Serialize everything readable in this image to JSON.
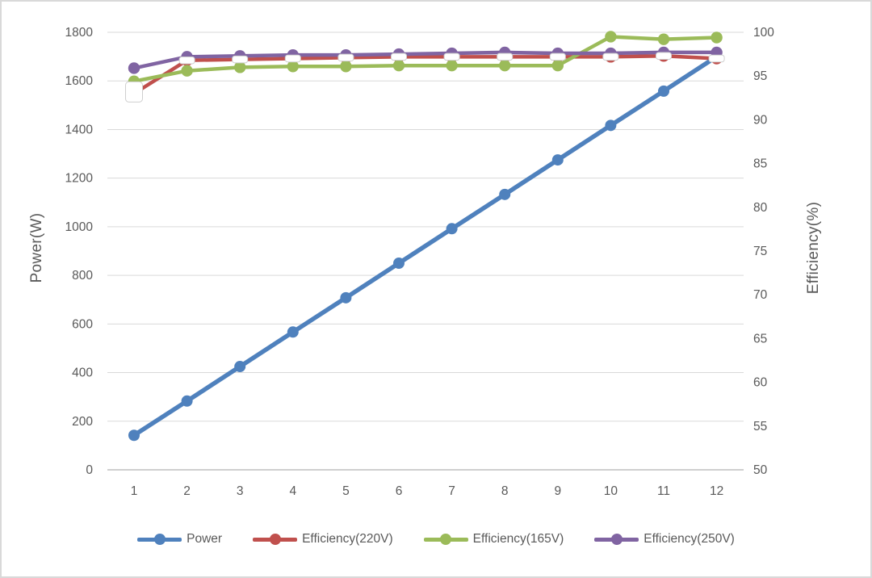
{
  "chart_data": {
    "type": "line",
    "title": "",
    "x_axis": {
      "ticks": [
        "1",
        "2",
        "3",
        "4",
        "5",
        "6",
        "7",
        "8",
        "9",
        "10",
        "11",
        "12"
      ]
    },
    "left_axis": {
      "title": "Power(W)",
      "min": 0,
      "max": 1800,
      "step": 200,
      "ticks": [
        "0",
        "200",
        "400",
        "600",
        "800",
        "1000",
        "1200",
        "1400",
        "1600",
        "1800"
      ]
    },
    "right_axis": {
      "title": "Efficiency(%)",
      "min": 50,
      "max": 100,
      "step": 5,
      "ticks": [
        "50",
        "55",
        "60",
        "65",
        "70",
        "75",
        "80",
        "85",
        "90",
        "95",
        "100"
      ]
    },
    "grid": true,
    "legend_position": "bottom",
    "series": [
      {
        "name": "Power",
        "axis": "left",
        "color": "#4F81BD",
        "marker": "circle",
        "values": [
          142,
          283,
          425,
          567,
          708,
          850,
          992,
          1133,
          1275,
          1417,
          1558,
          1700
        ]
      },
      {
        "name": "Efficiency(220V)",
        "axis": "right",
        "color": "#C0504D",
        "marker": "circle",
        "marker_overlay": "white-dash",
        "values": [
          93.0,
          96.8,
          96.9,
          97.0,
          97.1,
          97.2,
          97.2,
          97.2,
          97.2,
          97.2,
          97.3,
          97.0
        ]
      },
      {
        "name": "Efficiency(165V)",
        "axis": "right",
        "color": "#9BBB59",
        "marker": "circle",
        "values": [
          94.4,
          95.6,
          96.0,
          96.1,
          96.1,
          96.2,
          96.2,
          96.2,
          96.2,
          99.5,
          99.2,
          99.4
        ]
      },
      {
        "name": "Efficiency(250V)",
        "axis": "right",
        "color": "#8064A2",
        "marker": "circle",
        "values": [
          95.9,
          97.2,
          97.3,
          97.4,
          97.4,
          97.5,
          97.6,
          97.7,
          97.6,
          97.6,
          97.7,
          97.7
        ]
      }
    ],
    "colors": {
      "background": "#FFFFFF",
      "border": "#D9D9D9",
      "grid": "#D9D9D9",
      "axis_line": "#BFBFBF",
      "text": "#595959",
      "marker_overlay_fill": "#FFFFFF",
      "marker_overlay_stroke": "#CFCFCF"
    }
  }
}
